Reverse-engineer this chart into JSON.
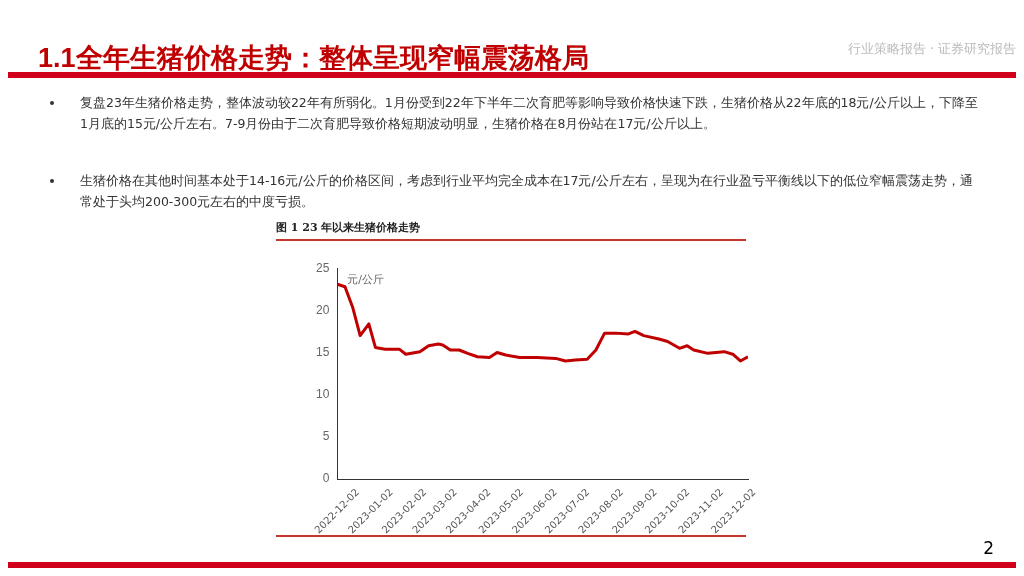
{
  "chart_data": {
    "type": "line",
    "title": "1.1全年生猪价格走势：整体呈现窄幅震荡格局",
    "subtitle": "图 1 23 年以来生猪价格走势",
    "ylabel": "元/公斤",
    "annotations": [
      "行业策略报告 · 证券研究报告",
      "复盘23年生猪价格走势，整体波动较22年有所弱化。1月份受到22年下半年二次育肥等影响导致价格快速下跌，生猪价格从22年底的18元/公斤以上，下降至1月底的15元/公斤左右。7-9月份由于二次育肥导致价格短期波动明显，生猪价格在8月份站在17元/公斤以上。",
      "生猪价格在其他时间基本处于14-16元/公斤的价格区间，考虑到行业平均完全成本在17元/公斤左右，呈现为在行业盈亏平衡线以下的低位窄幅震荡走势，通常处于头均200-300元左右的中度亏损。",
      "2"
    ],
    "x": [
      "2022-12-02",
      "2022-12-09",
      "2022-12-16",
      "2022-12-23",
      "2022-12-31",
      "2023-01-06",
      "2023-01-15",
      "2023-01-28",
      "2023-02-03",
      "2023-02-16",
      "2023-02-24",
      "2023-03-05",
      "2023-03-09",
      "2023-03-16",
      "2023-03-24",
      "2023-04-01",
      "2023-04-10",
      "2023-04-21",
      "2023-04-28",
      "2023-05-06",
      "2023-05-19",
      "2023-06-04",
      "2023-06-21",
      "2023-06-30",
      "2023-07-09",
      "2023-07-20",
      "2023-07-28",
      "2023-08-05",
      "2023-08-15",
      "2023-08-27",
      "2023-09-02",
      "2023-09-10",
      "2023-09-24",
      "2023-10-02",
      "2023-10-13",
      "2023-10-20",
      "2023-10-26",
      "2023-11-08",
      "2023-11-23",
      "2023-12-01",
      "2023-12-08",
      "2023-12-15"
    ],
    "series": [
      {
        "color": "#c00000",
        "values": [
          23.1,
          22.8,
          20.4,
          17.0,
          18.4,
          15.6,
          15.4,
          15.4,
          14.8,
          15.1,
          15.8,
          16.0,
          15.9,
          15.3,
          15.3,
          14.9,
          14.5,
          14.4,
          15.0,
          14.7,
          14.4,
          14.4,
          14.3,
          14.0,
          14.1,
          14.2,
          15.3,
          17.3,
          17.3,
          17.2,
          17.5,
          17.0,
          16.6,
          16.3,
          15.5,
          15.8,
          15.3,
          14.9,
          15.1,
          14.8,
          14.0,
          14.5
        ]
      }
    ],
    "xlim": [
      "2022-12-02",
      "2023-12-15"
    ],
    "xticks": [
      "2022-12-02",
      "2023-01-02",
      "2023-02-02",
      "2023-03-02",
      "2023-04-02",
      "2023-05-02",
      "2023-06-02",
      "2023-07-02",
      "2023-08-02",
      "2023-09-02",
      "2023-10-02",
      "2023-11-02",
      "2023-12-02"
    ],
    "ylim": [
      0,
      25
    ],
    "yticks": [
      0,
      5,
      10,
      15,
      20,
      25
    ],
    "grid": false,
    "legend": false,
    "marker": "none",
    "line_style": "solid"
  }
}
